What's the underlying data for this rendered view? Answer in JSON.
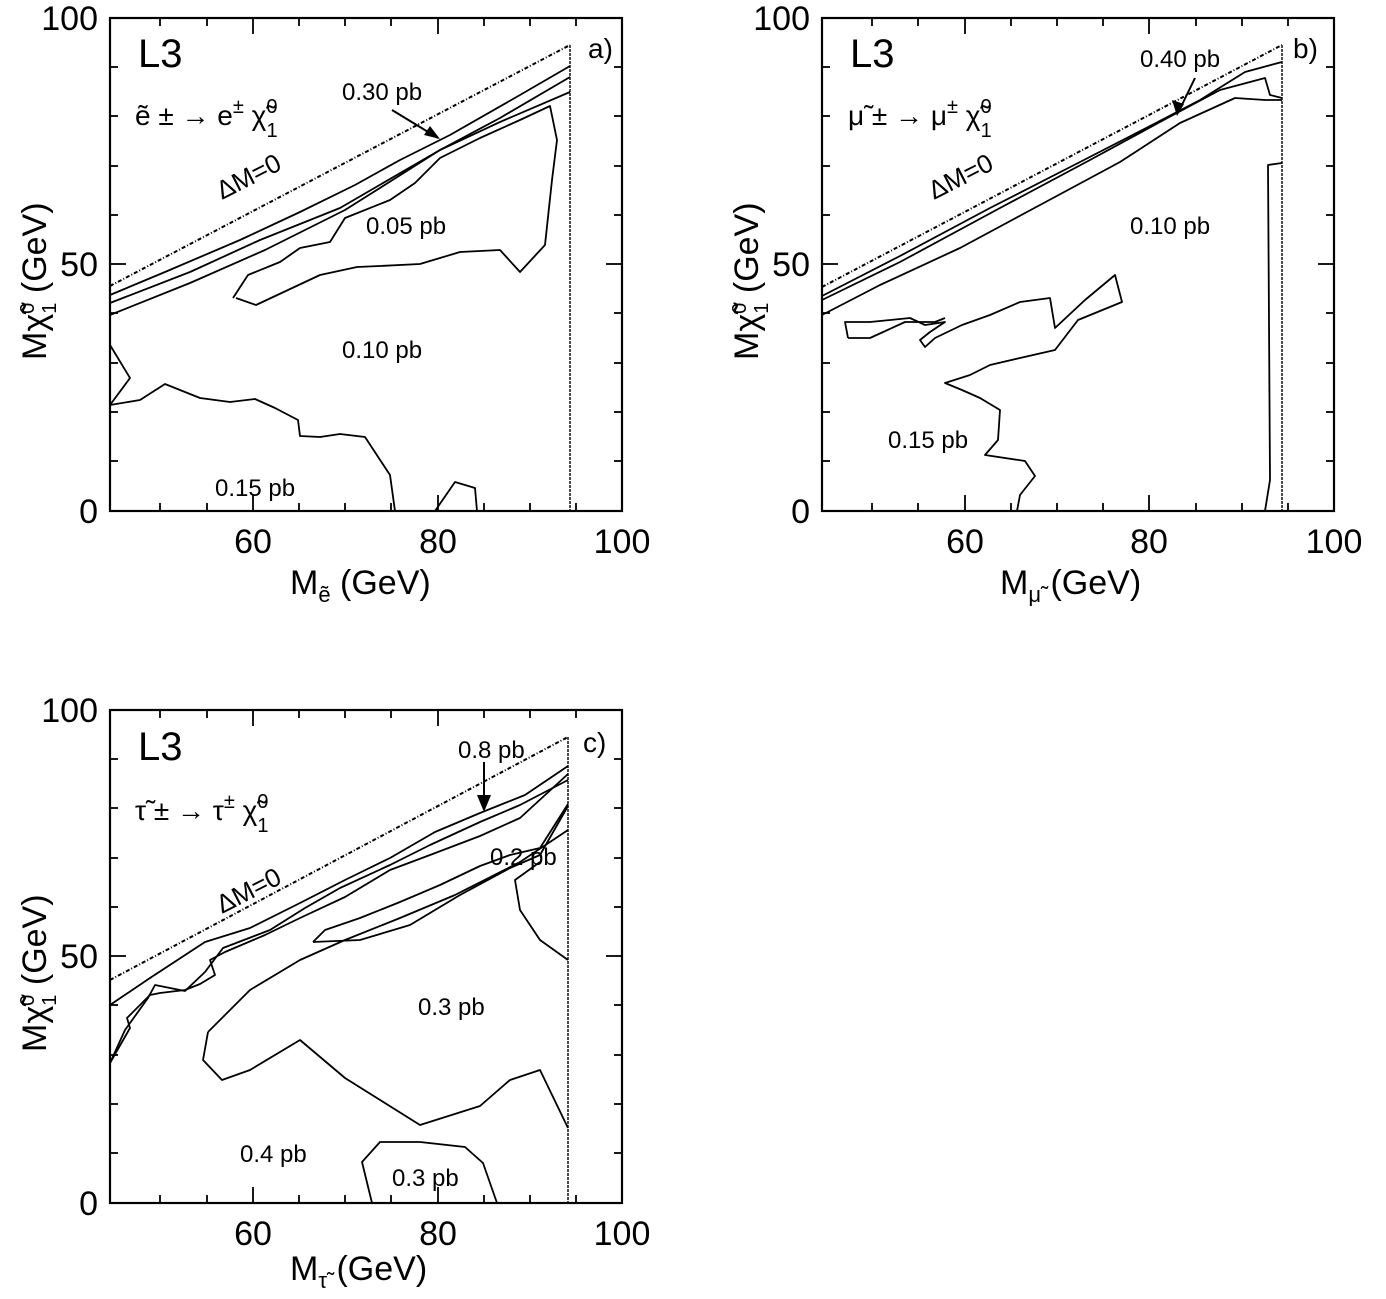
{
  "chart_data": [
    {
      "type": "line",
      "panel": "a)",
      "experiment": "L3",
      "process": "ẽ ± → e± χ̃01",
      "xlabel": "Mẽ (GeV)",
      "ylabel": "Mχ̃01 (GeV)",
      "xlim": [
        45,
        100
      ],
      "ylim": [
        0,
        100
      ],
      "xticks": [
        "60",
        "80",
        "100"
      ],
      "yticks": [
        "0",
        "50",
        "100"
      ],
      "kinematic_limit_label": "ΔM=0",
      "annotations": [
        "0.30 pb",
        "0.05 pb",
        "0.10 pb",
        "0.15 pb"
      ]
    },
    {
      "type": "line",
      "panel": "b)",
      "experiment": "L3",
      "process": "μ̃ ± → μ± χ̃01",
      "xlabel": "Mμ̃ (GeV)",
      "ylabel": "Mχ̃01 (GeV)",
      "xlim": [
        45,
        100
      ],
      "ylim": [
        0,
        100
      ],
      "xticks": [
        "60",
        "80",
        "100"
      ],
      "yticks": [
        "0",
        "50",
        "100"
      ],
      "kinematic_limit_label": "ΔM=0",
      "annotations": [
        "0.40 pb",
        "0.10 pb",
        "0.15 pb"
      ]
    },
    {
      "type": "line",
      "panel": "c)",
      "experiment": "L3",
      "process": "τ̃ ± → τ± χ̃01",
      "xlabel": "Mτ̃ (GeV)",
      "ylabel": "Mχ̃01 (GeV)",
      "xlim": [
        45,
        100
      ],
      "ylim": [
        0,
        100
      ],
      "xticks": [
        "60",
        "80",
        "100"
      ],
      "yticks": [
        "0",
        "50",
        "100"
      ],
      "kinematic_limit_label": "ΔM=0",
      "annotations": [
        "0.8 pb",
        "0.2 pb",
        "0.3 pb",
        "0.4 pb",
        "0.3 pb"
      ]
    }
  ],
  "text": {
    "a": {
      "l3": "L3",
      "tag": "a)",
      "proc_left": "ẽ ± → e",
      "proc_exp": "±",
      "proc_chi": " χ̃",
      "proc_sup": "0",
      "proc_sub": "1",
      "ylabel_main": "Mχ̃",
      "ylabel_sup": "0",
      "ylabel_sub": "1",
      "ylabel_unit": " (GeV)",
      "xlabel_main": "M",
      "xlabel_sub": "ẽ",
      "xlabel_unit": " (GeV)",
      "dm": "ΔM=0",
      "c1": "0.30 pb",
      "c2": "0.05 pb",
      "c3": "0.10 pb",
      "c4": "0.15 pb",
      "x60": "60",
      "x80": "80",
      "x100": "100",
      "y0": "0",
      "y50": "50",
      "y100": "100"
    },
    "b": {
      "l3": "L3",
      "tag": "b)",
      "proc_left": "μ̃ ± → μ",
      "proc_exp": "±",
      "proc_chi": " χ̃",
      "proc_sup": "0",
      "proc_sub": "1",
      "ylabel_main": "Mχ̃",
      "ylabel_sup": "0",
      "ylabel_sub": "1",
      "ylabel_unit": " (GeV)",
      "xlabel_main": "M",
      "xlabel_sub": "μ̃",
      "xlabel_unit": " (GeV)",
      "dm": "ΔM=0",
      "c1": "0.40 pb",
      "c2": "0.10 pb",
      "c3": "0.15 pb",
      "x60": "60",
      "x80": "80",
      "x100": "100",
      "y0": "0",
      "y50": "50",
      "y100": "100"
    },
    "c": {
      "l3": "L3",
      "tag": "c)",
      "proc_left": "τ̃ ± → τ",
      "proc_exp": "±",
      "proc_chi": " χ̃",
      "proc_sup": "0",
      "proc_sub": "1",
      "ylabel_main": "Mχ̃",
      "ylabel_sup": "0",
      "ylabel_sub": "1",
      "ylabel_unit": " (GeV)",
      "xlabel_main": "M",
      "xlabel_sub": "τ̃",
      "xlabel_unit": " (GeV)",
      "dm": "ΔM=0",
      "c1": "0.8 pb",
      "c2": "0.2 pb",
      "c3": "0.3 pb",
      "c4": "0.4 pb",
      "c5": "0.3 pb",
      "x60": "60",
      "x80": "80",
      "x100": "100",
      "y0": "0",
      "y50": "50",
      "y100": "100"
    }
  }
}
